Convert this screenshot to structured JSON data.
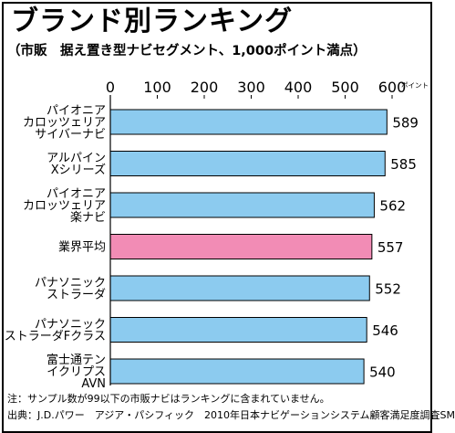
{
  "title": "ブランド別ランキング",
  "subtitle": "（市販　据え置き型ナビセグメント、1,000ポイント満点）",
  "footnote": "注：サンプル数が99以下の市販ナビはランキングに含まれていません。",
  "source": "出典：J.D.パワー　アジア・パシフィック　2010年日本ナビゲーションシステム顧客満足度調査SM",
  "colors": {
    "bar": "#8ccbef",
    "highlight": "#f28cb5",
    "stroke": "#000000"
  },
  "chart_data": {
    "type": "bar",
    "orientation": "horizontal",
    "xlim": [
      0,
      600
    ],
    "ticks": [
      "0",
      "100",
      "200",
      "300",
      "400",
      "500",
      "600"
    ],
    "tick_values": [
      0,
      100,
      200,
      300,
      400,
      500,
      600
    ],
    "unit": "ポイント",
    "grid": false,
    "categories": [
      [
        "パイオニア",
        "カロッツェリア",
        "サイバーナビ"
      ],
      [
        "アルパイン",
        "Xシリーズ"
      ],
      [
        "パイオニア",
        "カロッツェリア",
        "楽ナビ"
      ],
      [
        "業界平均"
      ],
      [
        "パナソニック",
        "ストラーダ"
      ],
      [
        "パナソニック",
        "ストラーダFクラス"
      ],
      [
        "富士通テン",
        "イクリプス",
        "AVN"
      ]
    ],
    "values": [
      589,
      585,
      562,
      557,
      552,
      546,
      540
    ],
    "value_labels": [
      "589",
      "585",
      "562",
      "557",
      "552",
      "546",
      "540"
    ],
    "highlight_index": 3
  }
}
